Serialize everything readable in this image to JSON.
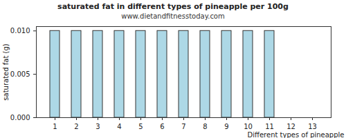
{
  "chart_data": {
    "type": "bar",
    "title": "saturated fat in different types of pineapple per 100g",
    "subtitle": "www.dietandfitnesstoday.com",
    "x_label": "Different types of pineapple",
    "y_label": "saturated fat (g)",
    "categories": [
      "1",
      "2",
      "3",
      "4",
      "5",
      "6",
      "7",
      "8",
      "9",
      "10",
      "11",
      "12",
      "13"
    ],
    "values": [
      0.01,
      0.01,
      0.01,
      0.01,
      0.01,
      0.01,
      0.01,
      0.01,
      0.01,
      0.01,
      0.01,
      0,
      0
    ],
    "color": "#add8e6",
    "ylim": [
      0,
      0.0105
    ],
    "yticks": [
      {
        "value": 0,
        "label": "0.000"
      },
      {
        "value": 0.005,
        "label": "0.005"
      },
      {
        "value": 0.01,
        "label": "0.010"
      }
    ],
    "grid": false
  }
}
